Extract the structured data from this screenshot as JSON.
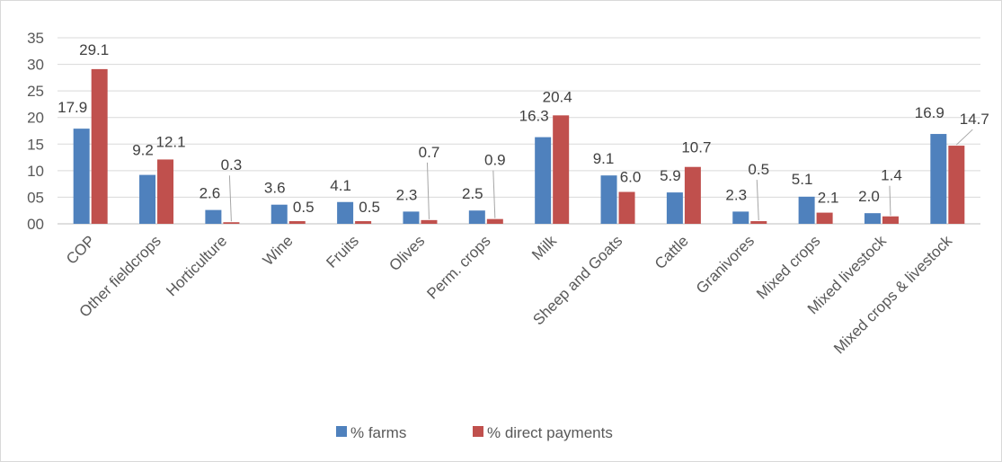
{
  "chart_data": {
    "type": "bar",
    "categories": [
      "COP",
      "Other fieldcrops",
      "Horticulture",
      "Wine",
      "Fruits",
      "Olives",
      "Perm. crops",
      "Milk",
      "Sheep and Goats",
      "Cattle",
      "Granivores",
      "Mixed crops",
      "Mixed livestock",
      "Mixed crops & livestock"
    ],
    "series": [
      {
        "name": "% farms",
        "color": "#4f81bd",
        "values": [
          17.9,
          9.2,
          2.6,
          3.6,
          4.1,
          2.3,
          2.5,
          16.3,
          9.1,
          5.9,
          2.3,
          5.1,
          2.0,
          16.9
        ]
      },
      {
        "name": "% direct payments",
        "color": "#c0504d",
        "values": [
          29.1,
          12.1,
          0.3,
          0.5,
          0.5,
          0.7,
          0.9,
          20.4,
          6.0,
          10.7,
          0.5,
          2.1,
          1.4,
          14.7
        ]
      }
    ],
    "ytick_labels": [
      "00",
      "05",
      "10",
      "15",
      "20",
      "25",
      "30",
      "35"
    ],
    "ylim": [
      0,
      35
    ],
    "grid": true,
    "legend": "bottom",
    "title": "",
    "xlabel": "",
    "ylabel": ""
  },
  "data_labels": {
    "farms": [
      "17.9",
      "9.2",
      "2.6",
      "3.6",
      "4.1",
      "2.3",
      "2.5",
      "16.3",
      "9.1",
      "5.9",
      "2.3",
      "5.1",
      "2.0",
      "16.9"
    ],
    "payments": [
      "29.1",
      "12.1",
      "0.3",
      "0.5",
      "0.5",
      "0.7",
      "0.9",
      "20.4",
      "6.0",
      "10.7",
      "0.5",
      "2.1",
      "1.4",
      "14.7"
    ]
  },
  "legend": {
    "items": [
      {
        "label": "% farms",
        "color": "#4f81bd"
      },
      {
        "label": "% direct payments",
        "color": "#c0504d"
      }
    ]
  },
  "colors": {
    "grid": "#d9d9d9",
    "axis": "#bfbfbf",
    "leader": "#a6a6a6"
  }
}
